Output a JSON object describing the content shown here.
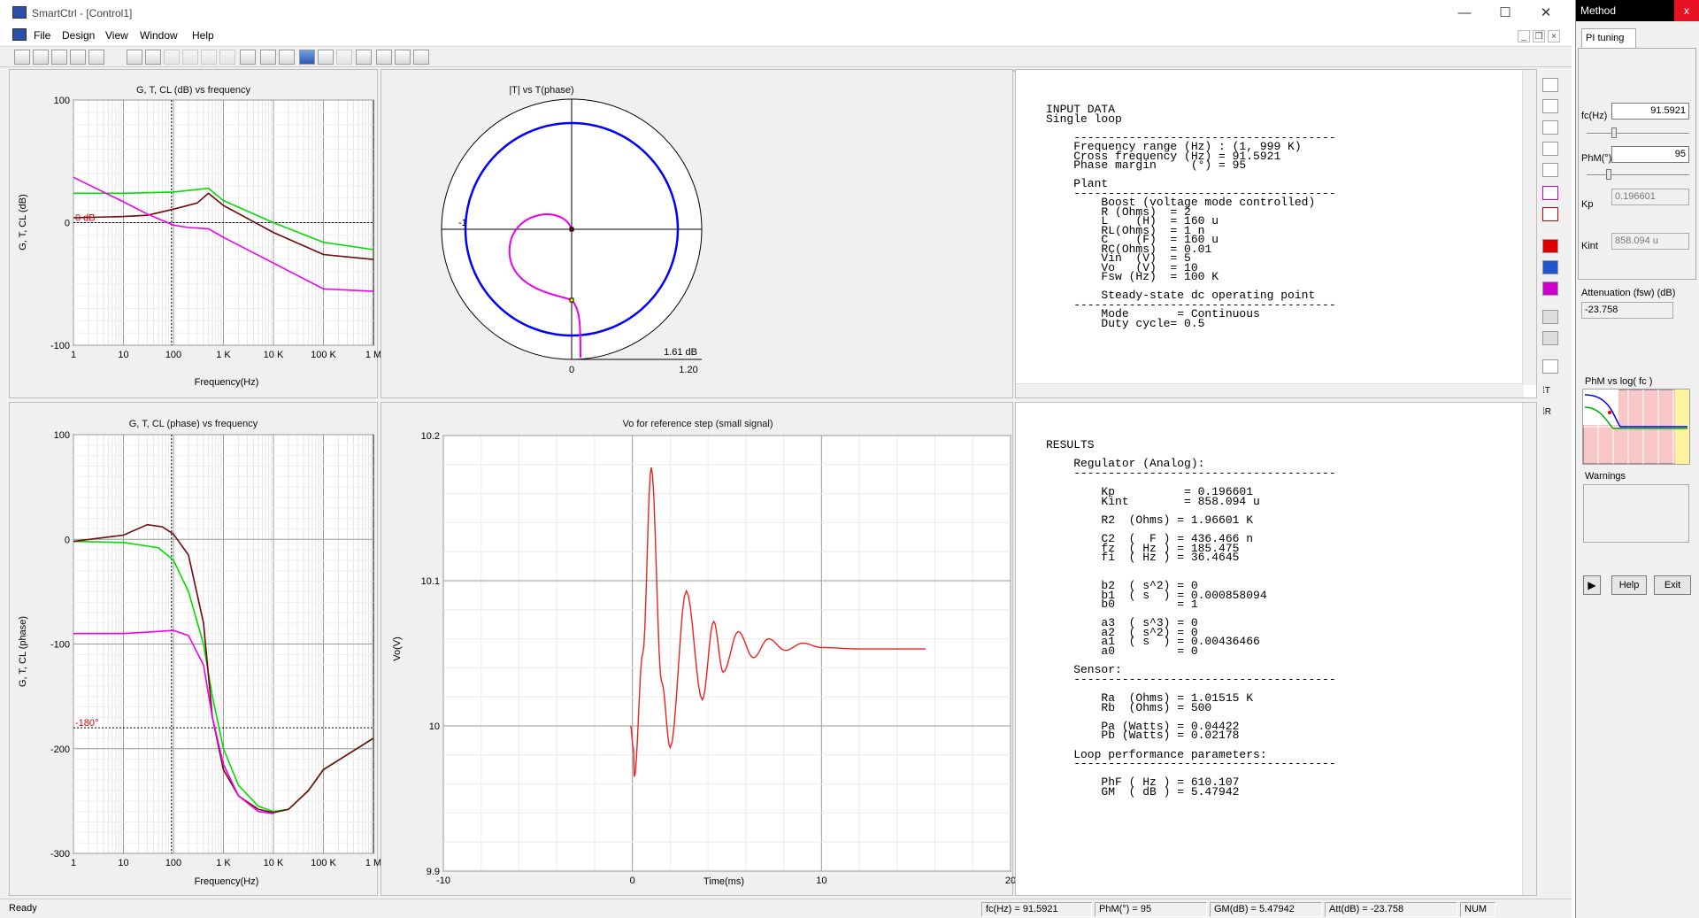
{
  "window": {
    "title": "SmartCtrl - [Control1]",
    "minimize": "—",
    "maximize": "☐",
    "close": "✕"
  },
  "menu": [
    "File",
    "Design",
    "View",
    "Window",
    "Help"
  ],
  "gain_plot": {
    "title": "G, T, CL (dB) vs frequency",
    "ylabel": "G, T, CL (dB)",
    "xlabel": "Frequency(Hz)",
    "yticks": [
      "100",
      "0",
      "-100"
    ],
    "xticks": [
      "1",
      "10",
      "100",
      "1 K",
      "10 K",
      "100 K",
      "1 M"
    ],
    "ref_label": "0 dB"
  },
  "phase_plot": {
    "title": "G, T, CL (phase) vs frequency",
    "ylabel": "G, T, CL (phase)",
    "xlabel": "Frequency(Hz)",
    "yticks": [
      "100",
      "0",
      "-100",
      "-200",
      "-300"
    ],
    "xticks": [
      "1",
      "10",
      "100",
      "1 K",
      "10 K",
      "100 K",
      "1 M"
    ],
    "ref_label": "-180°"
  },
  "nyquist_plot": {
    "title": "|T| vs T(phase)",
    "neg_one": "-1",
    "margin_label": "1.61 dB",
    "xticks": [
      "0",
      "1.20"
    ]
  },
  "step_plot": {
    "title": "Vo for reference step (small signal)",
    "ylabel": "Vo(V)",
    "xlabel": "Time(ms)",
    "yticks": [
      "10.2",
      "10.1",
      "10",
      "9.9"
    ],
    "xticks": [
      "-10",
      "0",
      "10",
      "20"
    ]
  },
  "chart_data": [
    {
      "type": "line",
      "title": "G, T, CL (dB) vs frequency",
      "xlabel": "Frequency(Hz)",
      "ylabel": "G, T, CL (dB)",
      "x_scale": "log",
      "xlim": [
        1,
        1000000
      ],
      "ylim": [
        -100,
        100
      ],
      "grid": true,
      "series": [
        {
          "color": "#00dd00",
          "x": [
            1,
            10,
            100,
            300,
            500,
            1000,
            10000,
            100000,
            1000000
          ],
          "values": [
            24,
            24,
            25,
            27,
            28,
            18,
            0,
            -16,
            -22
          ]
        },
        {
          "color": "#6e0a0a",
          "x": [
            1,
            10,
            30,
            100,
            300,
            500,
            1000,
            10000,
            100000,
            1000000
          ],
          "values": [
            4,
            5,
            6,
            11,
            16,
            24,
            14,
            -8,
            -26,
            -30
          ]
        },
        {
          "color": "#ee00ee",
          "x": [
            1,
            10,
            30,
            100,
            200,
            500,
            1000,
            10000,
            100000,
            1000000
          ],
          "values": [
            37,
            17,
            7,
            -2,
            -4,
            -5,
            -12,
            -33,
            -54,
            -56
          ]
        }
      ]
    },
    {
      "type": "line",
      "title": "G, T, CL (phase) vs frequency",
      "xlabel": "Frequency(Hz)",
      "ylabel": "G, T, CL (phase)",
      "x_scale": "log",
      "xlim": [
        1,
        1000000
      ],
      "ylim": [
        -300,
        100
      ],
      "grid": true,
      "series": [
        {
          "color": "#00dd00",
          "x": [
            1,
            10,
            50,
            100,
            200,
            400,
            600,
            1000,
            2000,
            5000,
            10000,
            20000,
            50000,
            100000,
            1000000
          ],
          "values": [
            -2,
            -3,
            -8,
            -20,
            -50,
            -100,
            -150,
            -200,
            -235,
            -255,
            -260,
            -258,
            -240,
            -220,
            -190
          ]
        },
        {
          "color": "#6e0a0a",
          "x": [
            1,
            10,
            30,
            60,
            100,
            200,
            400,
            600,
            1000,
            2000,
            5000,
            10000,
            20000,
            50000,
            100000,
            1000000
          ],
          "values": [
            -2,
            4,
            14,
            12,
            5,
            -15,
            -80,
            -170,
            -220,
            -245,
            -258,
            -261,
            -258,
            -240,
            -220,
            -190
          ]
        },
        {
          "color": "#ee00ee",
          "x": [
            1,
            10,
            50,
            100,
            200,
            400,
            600,
            1000,
            2000,
            5000,
            10000
          ],
          "values": [
            -90,
            -90,
            -88,
            -87,
            -92,
            -120,
            -170,
            -215,
            -245,
            -260,
            -262
          ]
        }
      ]
    },
    {
      "type": "line",
      "title": "Vo for reference step (small signal)",
      "xlabel": "Time(ms)",
      "ylabel": "Vo(V)",
      "xlim": [
        -10,
        20
      ],
      "ylim": [
        9.9,
        10.2
      ],
      "grid": true,
      "series": [
        {
          "color": "#ee2020",
          "x": [
            -0.1,
            0.05,
            0.1,
            0.55,
            1.0,
            1.55,
            2.0,
            2.85,
            3.7,
            4.3,
            4.8,
            5.6,
            6.4,
            7.2,
            8.1,
            9.0,
            10.0,
            12.0,
            15.5
          ],
          "values": [
            10.0,
            9.985,
            9.965,
            10.05,
            10.178,
            10.03,
            9.985,
            10.093,
            10.018,
            10.072,
            10.037,
            10.065,
            10.047,
            10.06,
            10.052,
            10.057,
            10.054,
            10.053,
            10.053
          ]
        }
      ]
    }
  ],
  "input_data": [
    "INPUT DATA",
    "Single loop",
    "",
    "    --------------------------------------",
    "    Frequency range (Hz) : (1, 999 K)",
    "    Cross frequency (Hz) = 91.5921",
    "    Phase margin     (°) = 95",
    "",
    "    Plant",
    "    --------------------------------------",
    "        Boost (voltage mode controlled)",
    "        R (Ohms)  = 2",
    "        L    (H)  = 160 u",
    "        RL(Ohms)  = 1 n",
    "        C    (F)  = 160 u",
    "        RC(Ohms)  = 0.01",
    "        Vin  (V)  = 5",
    "        Vo   (V)  = 10",
    "        Fsw (Hz)  = 100 K",
    "",
    "        Steady-state dc operating point",
    "    --------------------------------------",
    "        Mode       = Continuous",
    "        Duty cycle= 0.5"
  ],
  "results": [
    "RESULTS",
    "",
    "    Regulator (Analog):",
    "    --------------------------------------",
    "",
    "        Kp          = 0.196601",
    "        Kint        = 858.094 u",
    "",
    "        R2  (Ohms) = 1.96601 K",
    "",
    "        C2  (  F ) = 436.466 n",
    "        fz  ( Hz ) = 185.475",
    "        fi  ( Hz ) = 36.4645",
    "",
    "",
    "        b2  ( s^2) = 0",
    "        b1  ( s  ) = 0.000858094",
    "        b0         = 1",
    "",
    "        a3  ( s^3) = 0",
    "        a2  ( s^2) = 0",
    "        a1  ( s  ) = 0.00436466",
    "        a0         = 0",
    "",
    "    Sensor:",
    "    --------------------------------------",
    "",
    "        Ra  (Ohms) = 1.01515 K",
    "        Rb  (Ohms) = 500",
    "",
    "        Pa (Watts) = 0.04422",
    "        Pb (Watts) = 0.02178",
    "",
    "    Loop performance parameters:",
    "    --------------------------------------",
    "",
    "        PhF ( Hz ) = 610.107",
    "        GM  ( dB ) = 5.47942"
  ],
  "status": {
    "ready": "Ready",
    "fc": "fc(Hz) = 91.5921",
    "phm": "PhM(°) = 95",
    "gm": "GM(dB) = 5.47942",
    "att": "Att(dB) = -23.758",
    "num": "NUM"
  },
  "method_panel": {
    "title": "Method",
    "close": "x",
    "tab": "PI tuning",
    "fc_label": "fc(Hz)",
    "fc_value": "91.5921",
    "fc_slider_level": 0.25,
    "phm_label": "PhM(°)",
    "phm_value": "95",
    "phm_slider_level": 0.2,
    "kp_label": "Kp",
    "kp_value": "0.196601",
    "kint_label": "Kint",
    "kint_value": "858.094 u",
    "att_label": "Attenuation (fsw) (dB)",
    "att_value": "-23.758",
    "map_label": "PhM vs log( fc )",
    "warnings_label": "Warnings",
    "play": "▶",
    "help": "Help",
    "exit": "Exit"
  },
  "colors": {
    "green": "#00dd00",
    "maroon": "#6e0a0a",
    "magenta": "#ee00ee",
    "blue": "#0000ff",
    "red": "#ee2020"
  }
}
